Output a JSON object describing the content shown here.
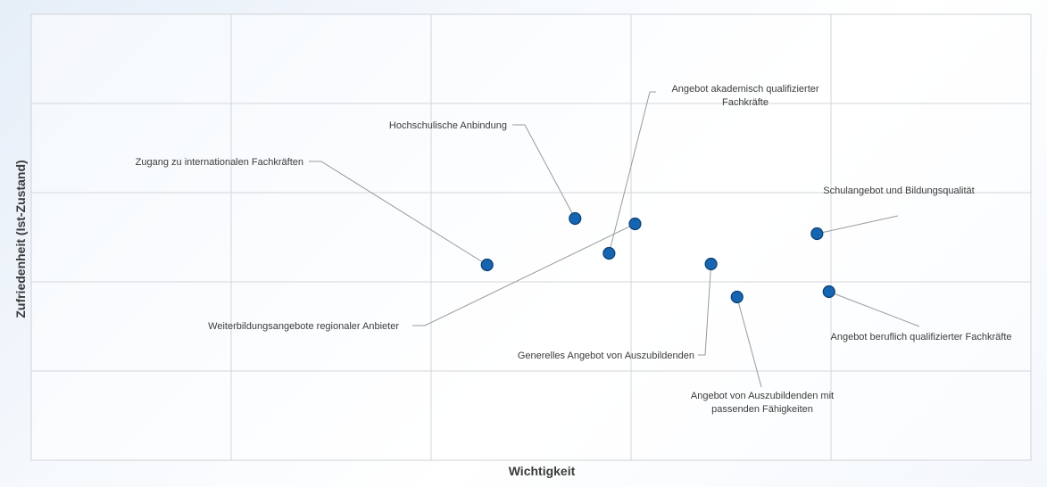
{
  "chart_data": {
    "type": "scatter",
    "title": "",
    "xlabel": "Wichtigkeit",
    "ylabel": "Zufriedenheit (Ist-Zustand)",
    "xlim": [
      0,
      5
    ],
    "ylim": [
      0,
      5
    ],
    "grid": true,
    "legend": "none",
    "point_color": "#1565b0",
    "points": [
      {
        "label": [
          "Zugang zu internationalen Fachkräften"
        ],
        "x": 2.28,
        "y": 2.19
      },
      {
        "label": [
          "Hochschulische Anbindung"
        ],
        "x": 2.72,
        "y": 2.71
      },
      {
        "label": [
          "Angebot akademisch qualifizierter",
          "Fachkräfte"
        ],
        "x": 2.89,
        "y": 2.32
      },
      {
        "label": [
          "Weiterbildungsangebote regionaler Anbieter"
        ],
        "x": 3.02,
        "y": 2.65
      },
      {
        "label": [
          "Generelles Angebot von Auszubildenden"
        ],
        "x": 3.4,
        "y": 2.2
      },
      {
        "label": [
          "Angebot von Auszubildenden mit",
          "passenden Fähigkeiten"
        ],
        "x": 3.53,
        "y": 1.83
      },
      {
        "label": [
          "Schulangebot und Bildungsqualität"
        ],
        "x": 3.93,
        "y": 2.54
      },
      {
        "label": [
          "Angebot beruflich qualifizierter Fachkräfte"
        ],
        "x": 3.99,
        "y": 1.89
      }
    ]
  }
}
